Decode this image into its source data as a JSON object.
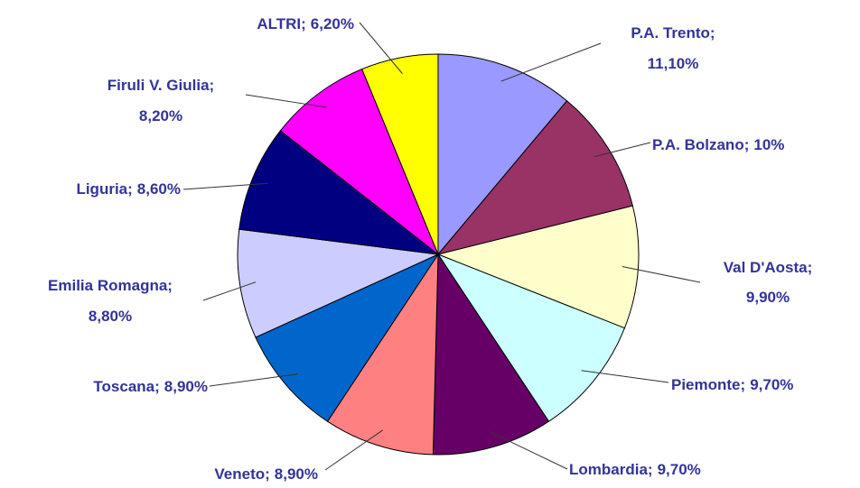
{
  "chart_data": {
    "type": "pie",
    "categories": [
      "P.A. Trento;",
      "P.A. Bolzano;",
      "Val D'Aosta;",
      "Piemonte;",
      "Lombardia;",
      "Veneto;",
      "Toscana;",
      "Emilia Romagna;",
      "Liguria;",
      "Firuli V. Giulia;",
      "ALTRI;"
    ],
    "values": [
      11.1,
      10,
      9.9,
      9.7,
      9.7,
      8.9,
      8.9,
      8.8,
      8.6,
      8.2,
      6.2
    ],
    "value_labels": [
      "11,10%",
      "10%",
      "9,90%",
      "9,70%",
      "9,70%",
      "8,90%",
      "8,90%",
      "8,80%",
      "8,60%",
      "8,20%",
      "6,20%"
    ],
    "colors": [
      "#9999ff",
      "#993366",
      "#ffffcc",
      "#ccffff",
      "#660066",
      "#ff8080",
      "#0066cc",
      "#ccccff",
      "#000080",
      "#ff00ff",
      "#ffff00"
    ]
  }
}
